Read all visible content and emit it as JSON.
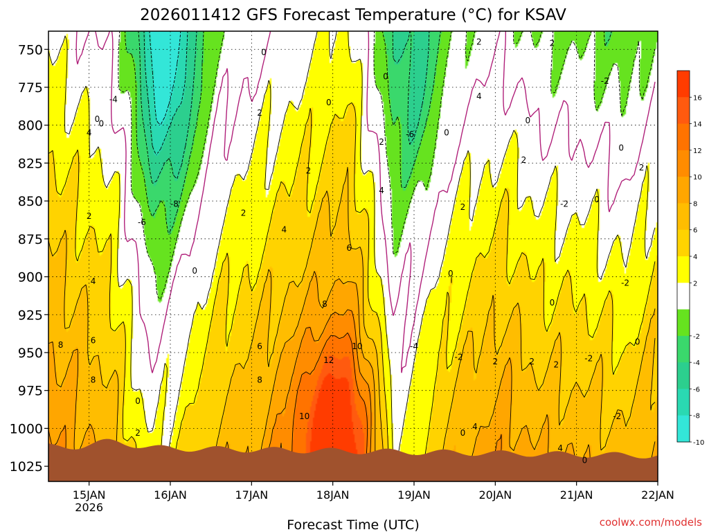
{
  "chart_data": {
    "type": "heatmap",
    "title": "2026011412 GFS Forecast Temperature (°C) for KSAV",
    "xlabel": "Forecast Time (UTC)",
    "ylabel": "",
    "credit": "coolwx.com/models",
    "y_axis": {
      "unit": "hPa",
      "range": [
        738,
        1035
      ],
      "ticks": [
        "750",
        "775",
        "800",
        "825",
        "850",
        "875",
        "900",
        "925",
        "950",
        "975",
        "1000",
        "1025"
      ],
      "inverted": true
    },
    "x_axis": {
      "unit": "day",
      "range": [
        14.5,
        22.0
      ],
      "ticks": [
        {
          "pos": 15,
          "label": "15JAN",
          "sub": "2026"
        },
        {
          "pos": 16,
          "label": "16JAN",
          "sub": ""
        },
        {
          "pos": 17,
          "label": "17JAN",
          "sub": ""
        },
        {
          "pos": 18,
          "label": "18JAN",
          "sub": ""
        },
        {
          "pos": 19,
          "label": "19JAN",
          "sub": ""
        },
        {
          "pos": 20,
          "label": "20JAN",
          "sub": ""
        },
        {
          "pos": 21,
          "label": "21JAN",
          "sub": ""
        },
        {
          "pos": 22,
          "label": "22JAN",
          "sub": ""
        }
      ]
    },
    "grid": true,
    "colorbar": {
      "labels": [
        "16",
        "14",
        "12",
        "10",
        "8",
        "6",
        "4",
        "2",
        "-2",
        "-4",
        "-6",
        "-8",
        "-10"
      ],
      "bins": [
        {
          "lo": -12,
          "hi": -10,
          "color": "#33e6d8"
        },
        {
          "lo": -10,
          "hi": -8,
          "color": "#2ad9b2"
        },
        {
          "lo": -8,
          "hi": -6,
          "color": "#2ccf8e"
        },
        {
          "lo": -6,
          "hi": -4,
          "color": "#3ad86c"
        },
        {
          "lo": -4,
          "hi": -2,
          "color": "#66e31f"
        },
        {
          "lo": -2,
          "hi": 2,
          "color": "#ffffff"
        },
        {
          "lo": 2,
          "hi": 4,
          "color": "#ffff00"
        },
        {
          "lo": 4,
          "hi": 6,
          "color": "#ffd300"
        },
        {
          "lo": 6,
          "hi": 8,
          "color": "#ffbd00"
        },
        {
          "lo": 8,
          "hi": 10,
          "color": "#ffa600"
        },
        {
          "lo": 10,
          "hi": 12,
          "color": "#ff8c00"
        },
        {
          "lo": 12,
          "hi": 14,
          "color": "#ff7300"
        },
        {
          "lo": 14,
          "hi": 16,
          "color": "#ff5a0f"
        },
        {
          "lo": 16,
          "hi": 18,
          "color": "#ff3c00"
        }
      ]
    },
    "model": {
      "base": [
        [
          14.5,
          3.5
        ],
        [
          15.3,
          1.0
        ],
        [
          15.8,
          -5.0
        ],
        [
          16.6,
          0.0
        ],
        [
          17.3,
          2.0
        ],
        [
          18.2,
          4.5
        ],
        [
          18.75,
          -3.5
        ],
        [
          19.5,
          0.0
        ],
        [
          20.1,
          1.5
        ],
        [
          20.5,
          0.0
        ],
        [
          21.2,
          -0.5
        ],
        [
          21.6,
          -1.5
        ],
        [
          22.0,
          0.5
        ]
      ],
      "lapse": [
        [
          14.5,
          0.0
        ],
        [
          15.6,
          -0.5
        ],
        [
          15.8,
          0.0
        ],
        [
          17.0,
          0.0
        ],
        [
          17.9,
          0.0
        ],
        [
          18.6,
          0.0
        ],
        [
          18.8,
          -1.0
        ],
        [
          19.4,
          0.0
        ],
        [
          20.0,
          0.5
        ],
        [
          20.5,
          0.5
        ],
        [
          22.0,
          0.5
        ]
      ],
      "warm_core": [
        18.0,
        1000,
        0.45,
        60,
        9.0
      ],
      "cold_core": [
        16.0,
        760,
        0.35,
        90,
        -6.5
      ],
      "cold_core2": [
        19.05,
        770,
        0.25,
        80,
        -4.0
      ]
    },
    "contour_labels": [
      {
        "x": 15.0,
        "p": 805,
        "v": "4"
      },
      {
        "x": 15.0,
        "p": 860,
        "v": "2"
      },
      {
        "x": 15.05,
        "p": 903,
        "v": "4"
      },
      {
        "x": 15.05,
        "p": 942,
        "v": "6"
      },
      {
        "x": 14.65,
        "p": 945,
        "v": "8"
      },
      {
        "x": 15.05,
        "p": 968,
        "v": "8"
      },
      {
        "x": 15.1,
        "p": 796,
        "v": "0"
      },
      {
        "x": 15.15,
        "p": 799,
        "v": "0"
      },
      {
        "x": 15.3,
        "p": 783,
        "v": "-4"
      },
      {
        "x": 15.65,
        "p": 864,
        "v": "-6"
      },
      {
        "x": 16.05,
        "p": 852,
        "v": "-8"
      },
      {
        "x": 16.3,
        "p": 896,
        "v": "0"
      },
      {
        "x": 15.6,
        "p": 982,
        "v": "0"
      },
      {
        "x": 15.6,
        "p": 1003,
        "v": "2"
      },
      {
        "x": 17.1,
        "p": 792,
        "v": "2"
      },
      {
        "x": 17.7,
        "p": 830,
        "v": "2"
      },
      {
        "x": 16.9,
        "p": 858,
        "v": "2"
      },
      {
        "x": 17.4,
        "p": 869,
        "v": "4"
      },
      {
        "x": 18.2,
        "p": 881,
        "v": "6"
      },
      {
        "x": 17.9,
        "p": 918,
        "v": "8"
      },
      {
        "x": 17.1,
        "p": 946,
        "v": "6"
      },
      {
        "x": 17.1,
        "p": 968,
        "v": "8"
      },
      {
        "x": 18.3,
        "p": 946,
        "v": "10"
      },
      {
        "x": 17.95,
        "p": 955,
        "v": "12"
      },
      {
        "x": 17.65,
        "p": 992,
        "v": "10"
      },
      {
        "x": 18.6,
        "p": 811,
        "v": "2"
      },
      {
        "x": 18.6,
        "p": 843,
        "v": "4"
      },
      {
        "x": 18.65,
        "p": 768,
        "v": "0"
      },
      {
        "x": 17.15,
        "p": 752,
        "v": "0"
      },
      {
        "x": 17.95,
        "p": 785,
        "v": "0"
      },
      {
        "x": 18.95,
        "p": 806,
        "v": "-6"
      },
      {
        "x": 19.0,
        "p": 946,
        "v": "-4"
      },
      {
        "x": 19.4,
        "p": 805,
        "v": "0"
      },
      {
        "x": 19.45,
        "p": 898,
        "v": "0"
      },
      {
        "x": 19.55,
        "p": 953,
        "v": "-2"
      },
      {
        "x": 19.6,
        "p": 1003,
        "v": "0"
      },
      {
        "x": 19.8,
        "p": 745,
        "v": "2"
      },
      {
        "x": 19.8,
        "p": 781,
        "v": "4"
      },
      {
        "x": 20.35,
        "p": 823,
        "v": "2"
      },
      {
        "x": 19.6,
        "p": 854,
        "v": "2"
      },
      {
        "x": 20.0,
        "p": 956,
        "v": "2"
      },
      {
        "x": 19.75,
        "p": 999,
        "v": "4"
      },
      {
        "x": 20.45,
        "p": 956,
        "v": "2"
      },
      {
        "x": 20.75,
        "p": 958,
        "v": "2"
      },
      {
        "x": 20.4,
        "p": 797,
        "v": "0"
      },
      {
        "x": 20.7,
        "p": 746,
        "v": "2"
      },
      {
        "x": 21.35,
        "p": 771,
        "v": "-2"
      },
      {
        "x": 20.85,
        "p": 852,
        "v": "-2"
      },
      {
        "x": 21.25,
        "p": 849,
        "v": "0"
      },
      {
        "x": 20.7,
        "p": 917,
        "v": "0"
      },
      {
        "x": 21.15,
        "p": 954,
        "v": "-2"
      },
      {
        "x": 21.6,
        "p": 904,
        "v": "-2"
      },
      {
        "x": 21.55,
        "p": 815,
        "v": "0"
      },
      {
        "x": 21.8,
        "p": 828,
        "v": "2"
      },
      {
        "x": 21.75,
        "p": 943,
        "v": "0"
      },
      {
        "x": 21.5,
        "p": 992,
        "v": "-2"
      },
      {
        "x": 20.8,
        "p": 1013,
        "v": "4"
      },
      {
        "x": 21.1,
        "p": 1021,
        "v": "0"
      }
    ]
  }
}
